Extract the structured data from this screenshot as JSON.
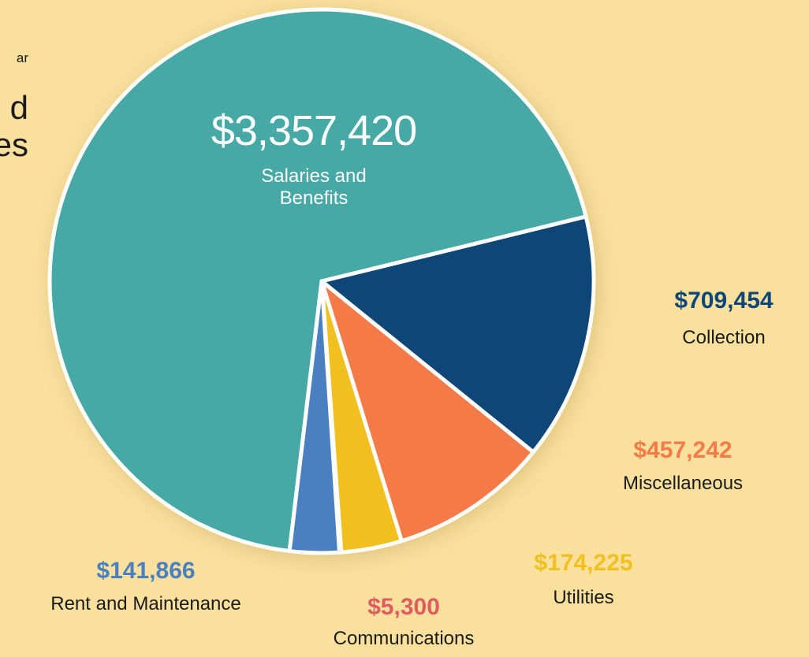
{
  "chart_data": {
    "type": "pie",
    "title_lines": [
      "ar",
      "d",
      "es"
    ],
    "categories": [
      "Salaries and Benefits",
      "Collection",
      "Miscellaneous",
      "Utilities",
      "Communications",
      "Rent and Maintenance"
    ],
    "values": [
      3357420,
      709454,
      457242,
      174225,
      5300,
      141866
    ],
    "value_labels": [
      "$3,357,420",
      "$709,454",
      "$457,242",
      "$174,225",
      "$5,300",
      "$141,866"
    ],
    "colors": [
      "#47a9a5",
      "#0f4678",
      "#f47b48",
      "#f2c01e",
      "#e05a62",
      "#4a7fc1"
    ]
  }
}
